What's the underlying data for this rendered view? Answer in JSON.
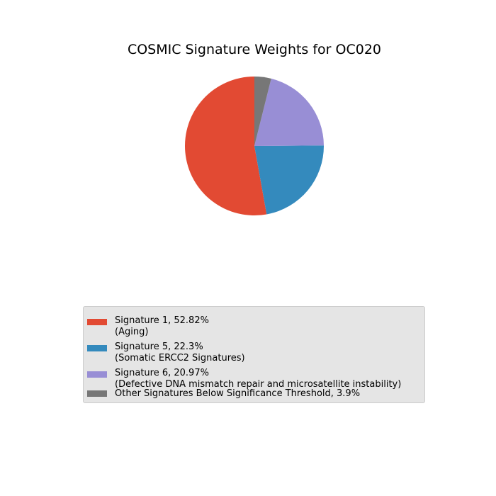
{
  "chart_data": {
    "type": "pie",
    "title": "COSMIC Signature Weights for OC020",
    "start_angle_deg": 90,
    "direction": "counterclockwise",
    "legend_position": "bottom-center",
    "slices": [
      {
        "label_line1": "Signature 1, 52.82%",
        "label_line2": "(Aging)",
        "value": 52.82,
        "color": "#e24a33"
      },
      {
        "label_line1": "Signature 5, 22.3%",
        "label_line2": "(Somatic ERCC2 Signatures)",
        "value": 22.3,
        "color": "#348abd"
      },
      {
        "label_line1": "Signature 6, 20.97%",
        "label_line2": "(Defective DNA mismatch repair and microsatellite instability)",
        "value": 20.97,
        "color": "#988ed5"
      },
      {
        "label_line1": "Other Signatures Below Significance Threshold, 3.9%",
        "label_line2": "",
        "value": 3.9,
        "color": "#777777"
      }
    ]
  }
}
